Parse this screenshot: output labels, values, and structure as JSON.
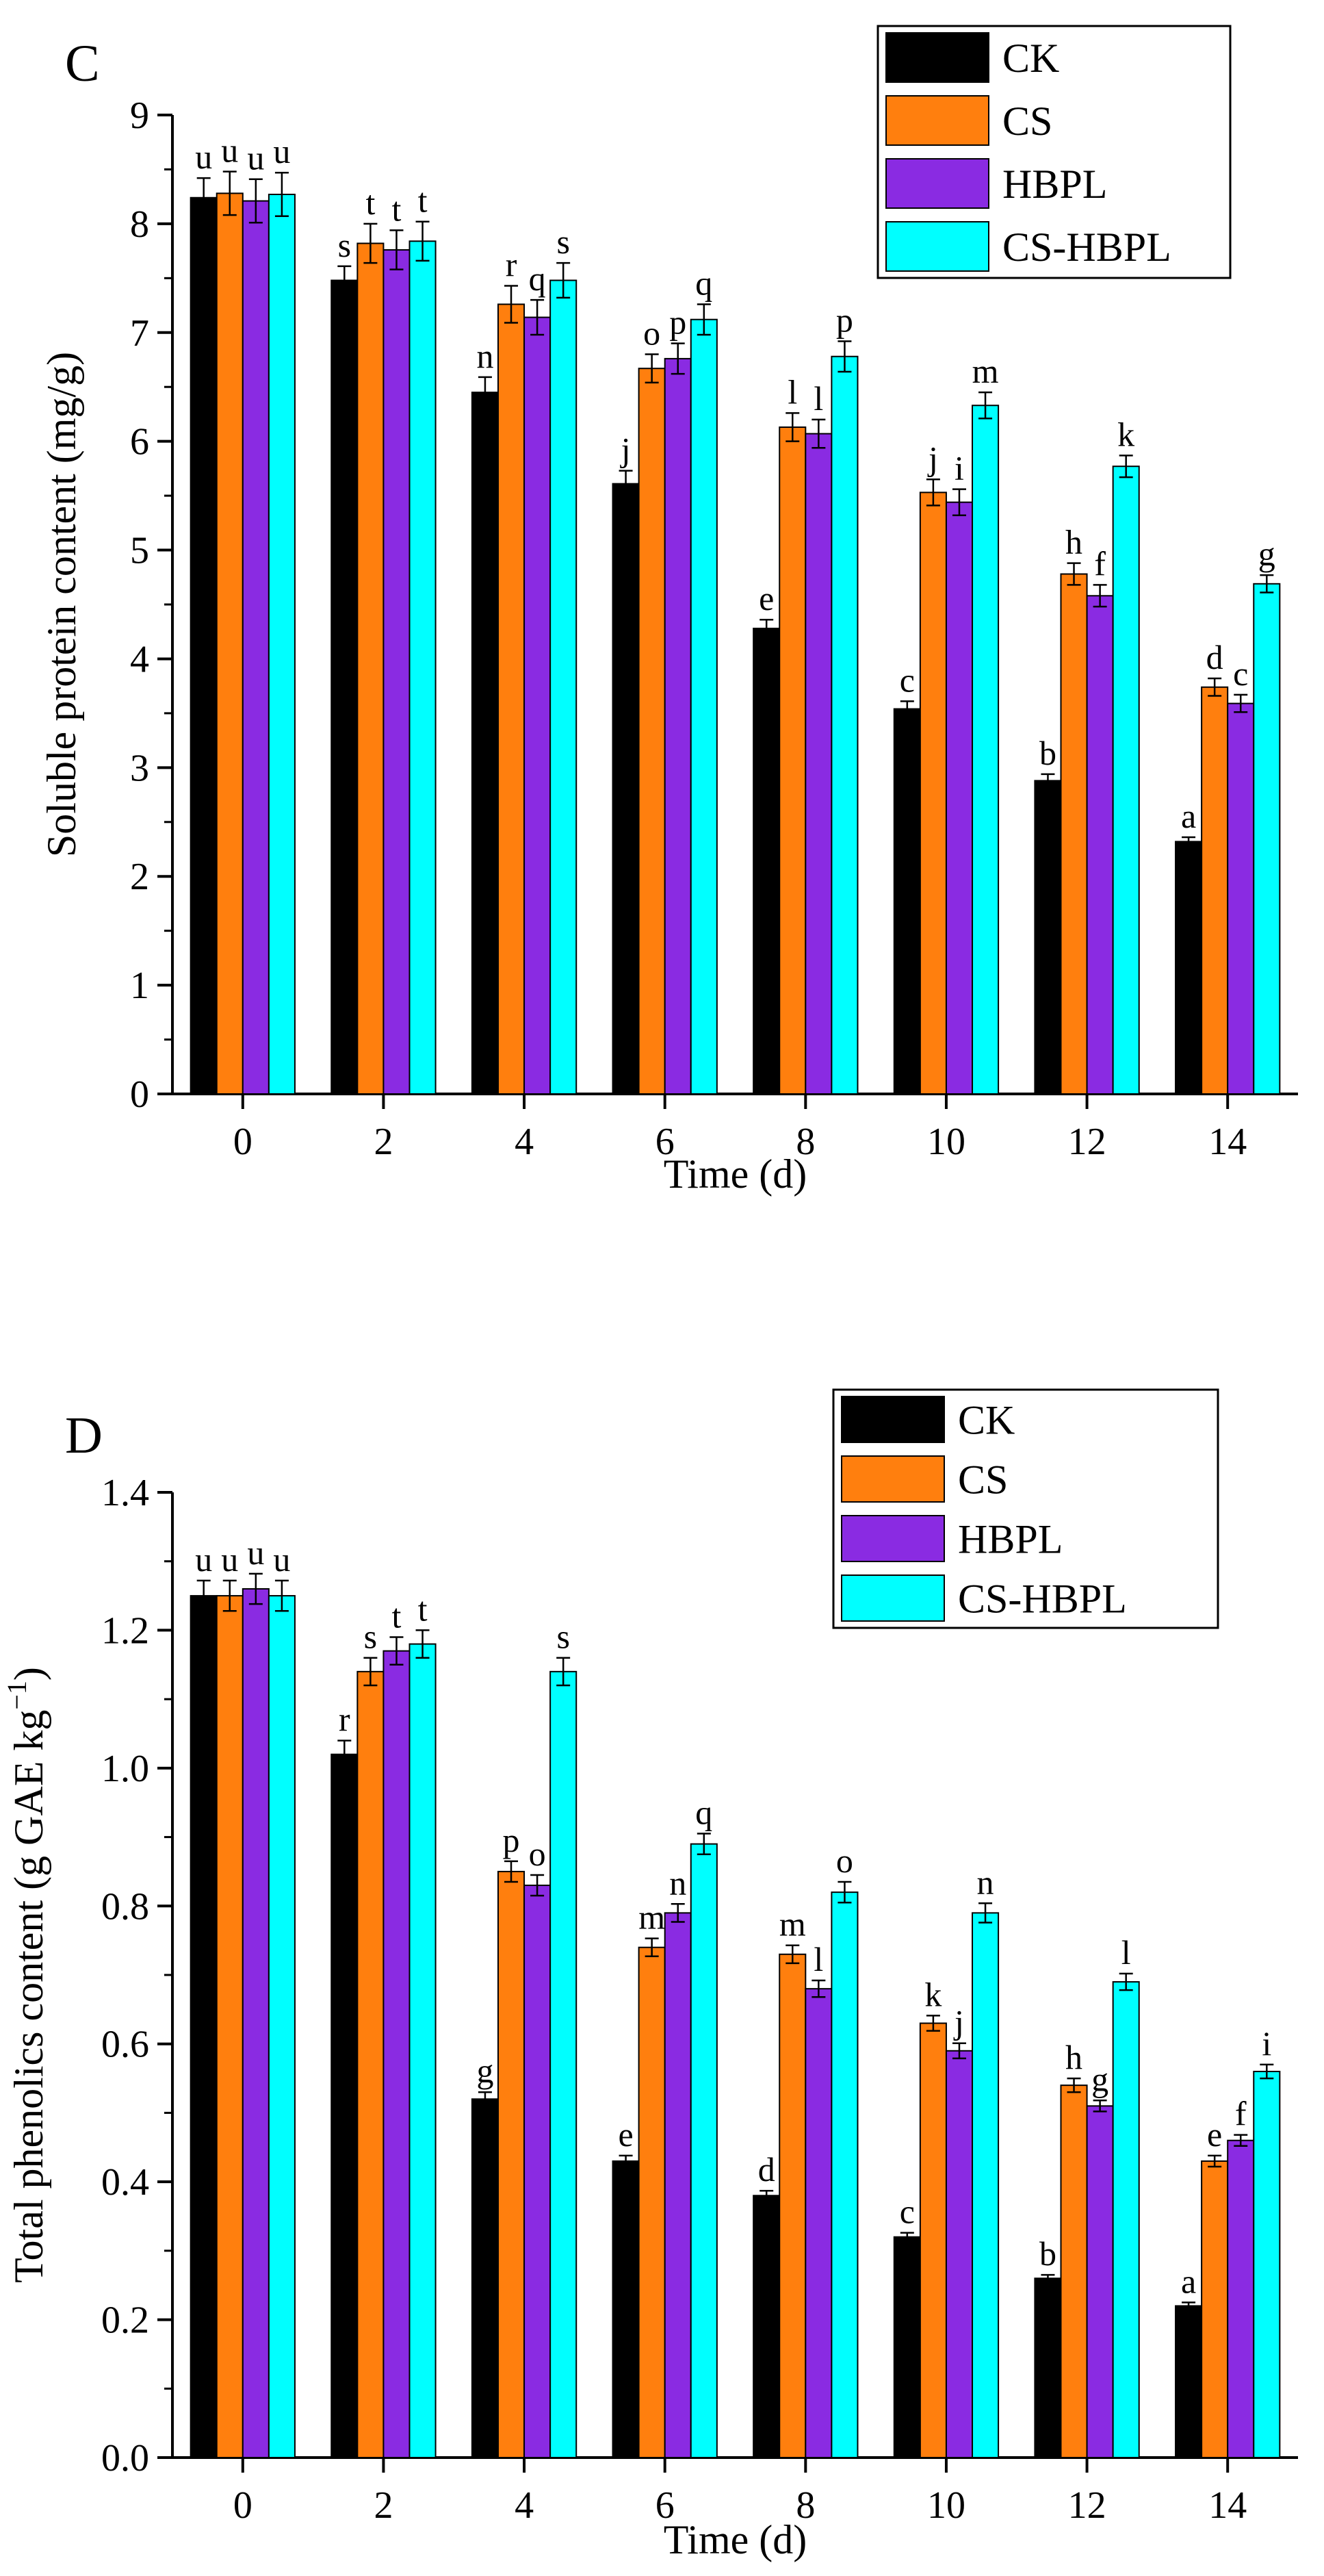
{
  "chart_data": [
    {
      "type": "bar",
      "panel_label": "C",
      "title": "",
      "xlabel": "Time (d)",
      "ylabel": "Soluble protein content (mg/g)",
      "ylim": [
        0,
        9
      ],
      "yticks": [
        "0",
        "1",
        "2",
        "3",
        "4",
        "5",
        "6",
        "7",
        "8",
        "9"
      ],
      "categories": [
        "0",
        "2",
        "4",
        "6",
        "8",
        "10",
        "12",
        "14"
      ],
      "legend_position": "top-right",
      "series": [
        {
          "name": "CK",
          "color": "#000000",
          "values": [
            8.24,
            7.48,
            6.45,
            5.61,
            4.28,
            3.54,
            2.88,
            2.32
          ],
          "errors": [
            0.18,
            0.13,
            0.14,
            0.12,
            0.08,
            0.07,
            0.06,
            0.04
          ],
          "letters": [
            "u",
            "s",
            "n",
            "j",
            "e",
            "c",
            "b",
            "a"
          ]
        },
        {
          "name": "CS",
          "color": "#ff7f0e",
          "values": [
            8.28,
            7.82,
            7.26,
            6.67,
            6.13,
            5.53,
            4.78,
            3.74
          ],
          "errors": [
            0.2,
            0.18,
            0.17,
            0.13,
            0.13,
            0.12,
            0.1,
            0.08
          ],
          "letters": [
            "u",
            "t",
            "r",
            "o",
            "l",
            "j",
            "h",
            "d"
          ]
        },
        {
          "name": "HBPL",
          "color": "#8a2be2",
          "values": [
            8.21,
            7.76,
            7.14,
            6.76,
            6.07,
            5.44,
            4.58,
            3.59
          ],
          "errors": [
            0.2,
            0.18,
            0.16,
            0.14,
            0.13,
            0.12,
            0.1,
            0.08
          ],
          "letters": [
            "u",
            "t",
            "q",
            "p",
            "l",
            "i",
            "f",
            "c"
          ]
        },
        {
          "name": "CS-HBPL",
          "color": "#00ffff",
          "values": [
            8.27,
            7.84,
            7.48,
            7.12,
            6.78,
            6.33,
            5.77,
            4.69
          ],
          "errors": [
            0.2,
            0.18,
            0.16,
            0.14,
            0.14,
            0.12,
            0.1,
            0.08
          ],
          "letters": [
            "u",
            "t",
            "s",
            "q",
            "p",
            "m",
            "k",
            "g"
          ]
        }
      ]
    },
    {
      "type": "bar",
      "panel_label": "D",
      "title": "",
      "xlabel": "Time (d)",
      "ylabel": "Total phenolics content (g GAE kg",
      "ylabel_sup": "−1",
      "ylabel_end": ")",
      "ylim": [
        0,
        1.4
      ],
      "yticks": [
        "0.0",
        "0.2",
        "0.4",
        "0.6",
        "0.8",
        "1.0",
        "1.2",
        "1.4"
      ],
      "categories": [
        "0",
        "2",
        "4",
        "6",
        "8",
        "10",
        "12",
        "14"
      ],
      "legend_position": "top-right",
      "series": [
        {
          "name": "CK",
          "color": "#000000",
          "values": [
            1.25,
            1.02,
            0.52,
            0.43,
            0.38,
            0.32,
            0.26,
            0.22
          ],
          "errors": [
            0.022,
            0.02,
            0.01,
            0.008,
            0.007,
            0.006,
            0.005,
            0.005
          ],
          "letters": [
            "u",
            "r",
            "g",
            "e",
            "d",
            "c",
            "b",
            "a"
          ]
        },
        {
          "name": "CS",
          "color": "#ff7f0e",
          "values": [
            1.25,
            1.14,
            0.85,
            0.74,
            0.73,
            0.63,
            0.54,
            0.43
          ],
          "errors": [
            0.022,
            0.02,
            0.015,
            0.013,
            0.013,
            0.011,
            0.01,
            0.008
          ],
          "letters": [
            "u",
            "s",
            "p",
            "m",
            "m",
            "k",
            "h",
            "e"
          ]
        },
        {
          "name": "HBPL",
          "color": "#8a2be2",
          "values": [
            1.26,
            1.17,
            0.83,
            0.79,
            0.68,
            0.59,
            0.51,
            0.46
          ],
          "errors": [
            0.022,
            0.02,
            0.015,
            0.013,
            0.012,
            0.011,
            0.008,
            0.008
          ],
          "letters": [
            "u",
            "t",
            "o",
            "n",
            "l",
            "j",
            "g",
            "f"
          ]
        },
        {
          "name": "CS-HBPL",
          "color": "#00ffff",
          "values": [
            1.25,
            1.18,
            1.14,
            0.89,
            0.82,
            0.79,
            0.69,
            0.56
          ],
          "errors": [
            0.022,
            0.02,
            0.02,
            0.015,
            0.015,
            0.014,
            0.012,
            0.01
          ],
          "letters": [
            "u",
            "t",
            "s",
            "q",
            "o",
            "n",
            "l",
            "i"
          ]
        }
      ]
    }
  ]
}
